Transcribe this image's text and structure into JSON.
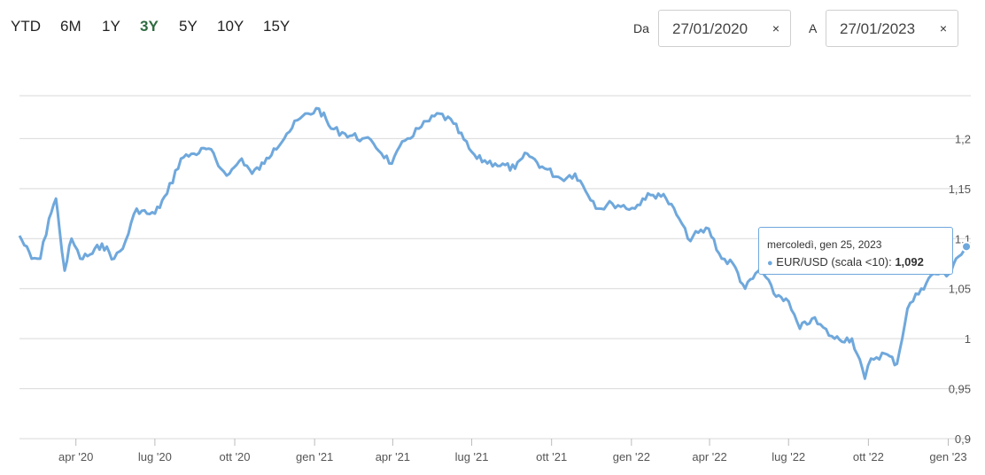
{
  "range_selector": {
    "buttons": [
      "YTD",
      "6M",
      "1Y",
      "3Y",
      "5Y",
      "10Y",
      "15Y"
    ],
    "active": "3Y"
  },
  "date_range": {
    "from_label": "Da",
    "from_value": "27/01/2020",
    "to_label": "A",
    "to_value": "27/01/2023",
    "clear_symbol": "×"
  },
  "tooltip": {
    "date": "mercoledì, gen 25, 2023",
    "series_label": "EUR/USD (scala <10)",
    "value": "1,092"
  },
  "colors": {
    "series": "#6fa8dc",
    "grid": "#d9d9d9",
    "active_range": "#2e6b3f"
  },
  "chart_data": {
    "type": "line",
    "title": "",
    "xlabel": "",
    "ylabel": "",
    "series": [
      {
        "name": "EUR/USD (scala <10)",
        "x": [
          "2020-01-27",
          "2020-02-10",
          "2020-02-20",
          "2020-03-01",
          "2020-03-09",
          "2020-03-13",
          "2020-03-19",
          "2020-03-27",
          "2020-04-06",
          "2020-04-20",
          "2020-05-01",
          "2020-05-15",
          "2020-05-25",
          "2020-06-10",
          "2020-06-22",
          "2020-07-01",
          "2020-07-15",
          "2020-07-31",
          "2020-08-15",
          "2020-09-01",
          "2020-09-15",
          "2020-09-25",
          "2020-10-09",
          "2020-10-21",
          "2020-11-04",
          "2020-11-15",
          "2020-11-30",
          "2020-12-15",
          "2021-01-06",
          "2021-01-20",
          "2021-02-05",
          "2021-02-25",
          "2021-03-10",
          "2021-03-31",
          "2021-04-15",
          "2021-05-01",
          "2021-05-25",
          "2021-06-10",
          "2021-06-28",
          "2021-07-07",
          "2021-07-28",
          "2021-08-20",
          "2021-09-03",
          "2021-09-20",
          "2021-10-12",
          "2021-10-28",
          "2021-11-24",
          "2021-12-10",
          "2022-01-05",
          "2022-01-14",
          "2022-02-01",
          "2022-02-10",
          "2022-02-25",
          "2022-03-07",
          "2022-03-31",
          "2022-04-15",
          "2022-04-28",
          "2022-05-12",
          "2022-05-30",
          "2022-06-14",
          "2022-06-28",
          "2022-07-14",
          "2022-07-28",
          "2022-08-23",
          "2022-09-12",
          "2022-09-27",
          "2022-10-04",
          "2022-10-20",
          "2022-11-03",
          "2022-11-15",
          "2022-12-01",
          "2022-12-15",
          "2023-01-02",
          "2023-01-10",
          "2023-01-25"
        ],
        "y": [
          1.103,
          1.08,
          1.08,
          1.12,
          1.14,
          1.11,
          1.068,
          1.1,
          1.08,
          1.085,
          1.095,
          1.08,
          1.09,
          1.13,
          1.125,
          1.125,
          1.145,
          1.18,
          1.185,
          1.19,
          1.17,
          1.165,
          1.18,
          1.165,
          1.175,
          1.19,
          1.205,
          1.22,
          1.23,
          1.21,
          1.205,
          1.2,
          1.195,
          1.175,
          1.198,
          1.21,
          1.225,
          1.215,
          1.19,
          1.18,
          1.175,
          1.17,
          1.185,
          1.172,
          1.16,
          1.165,
          1.13,
          1.135,
          1.13,
          1.14,
          1.145,
          1.14,
          1.12,
          1.1,
          1.11,
          1.08,
          1.075,
          1.05,
          1.07,
          1.045,
          1.04,
          1.01,
          1.02,
          1.0,
          1.0,
          0.96,
          0.98,
          0.985,
          0.975,
          1.03,
          1.05,
          1.065,
          1.065,
          1.08,
          1.092
        ]
      }
    ],
    "x_tick_labels": [
      "apr '20",
      "lug '20",
      "ott '20",
      "gen '21",
      "apr '21",
      "lug '21",
      "ott '21",
      "gen '22",
      "apr '22",
      "lug '22",
      "ott '22",
      "gen '23"
    ],
    "x_tick_dates": [
      "2020-04-01",
      "2020-07-01",
      "2020-10-01",
      "2021-01-01",
      "2021-04-01",
      "2021-07-01",
      "2021-10-01",
      "2022-01-01",
      "2022-04-01",
      "2022-07-01",
      "2022-10-01",
      "2023-01-01"
    ],
    "y_tick_labels": [
      "1,2",
      "1,15",
      "1,1",
      "1,05",
      "1",
      "0,95",
      "0,9"
    ],
    "y_tick_values": [
      1.2,
      1.15,
      1.1,
      1.05,
      1.0,
      0.95,
      0.9
    ],
    "xlim": [
      "2020-01-27",
      "2023-01-27"
    ],
    "ylim": [
      0.9,
      1.25
    ],
    "grid": true,
    "legend": "none"
  }
}
